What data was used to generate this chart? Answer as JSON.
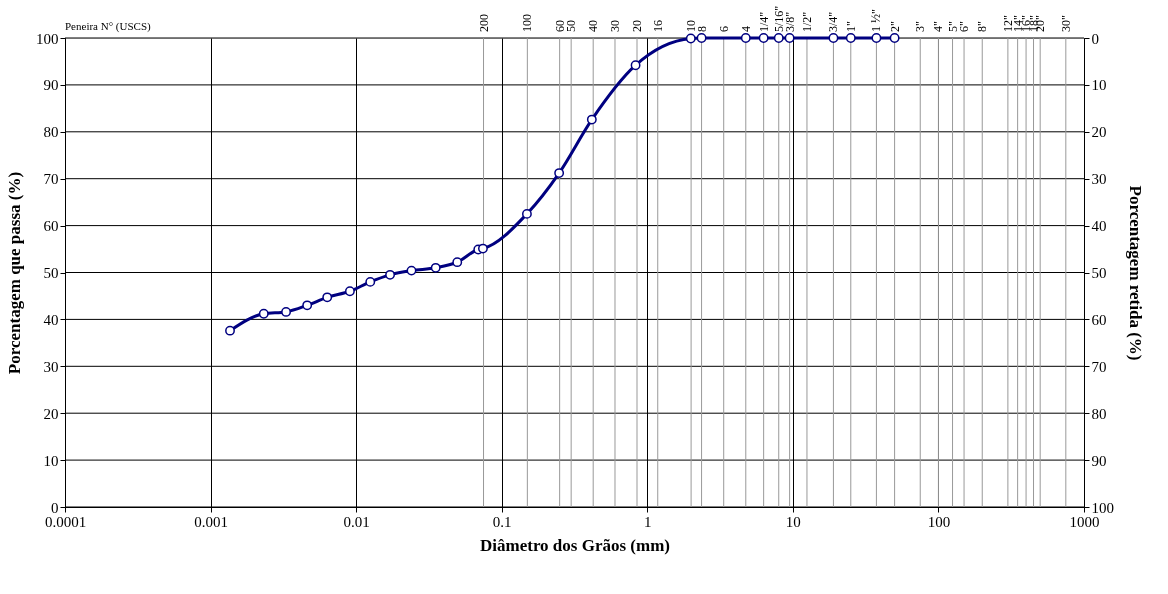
{
  "chart_data": {
    "type": "line",
    "xlabel": "Diâmetro dos Grãos (mm)",
    "ylabel": "Porcentagem que passa     (%)",
    "y2label": "Porcentagem retida  (%)",
    "annotations": [
      "Peneira N°  (USCS)",
      {
        "text": "200",
        "x": 0.075,
        "y": 100
      },
      {
        "text": "100",
        "x": 0.15,
        "y": 100
      },
      {
        "text": "60",
        "x": 0.25,
        "y": 100
      },
      {
        "text": "50",
        "x": 0.3,
        "y": 100
      },
      {
        "text": "40",
        "x": 0.425,
        "y": 100
      },
      {
        "text": "30",
        "x": 0.6,
        "y": 100
      },
      {
        "text": "20",
        "x": 0.85,
        "y": 100
      },
      {
        "text": "16",
        "x": 1.18,
        "y": 100
      },
      {
        "text": "10",
        "x": 2.0,
        "y": 100
      },
      {
        "text": "8",
        "x": 2.36,
        "y": 100
      },
      {
        "text": "6",
        "x": 3.35,
        "y": 100
      },
      {
        "text": "4",
        "x": 4.75,
        "y": 100
      },
      {
        "text": "1/4\"",
        "x": 6.3,
        "y": 100
      },
      {
        "text": "5/16\"",
        "x": 8,
        "y": 100
      },
      {
        "text": "3/8\"",
        "x": 9.5,
        "y": 100
      },
      {
        "text": "1/2\"",
        "x": 12.5,
        "y": 100
      },
      {
        "text": "3/4\"",
        "x": 19,
        "y": 100
      },
      {
        "text": "1\"",
        "x": 25,
        "y": 100
      },
      {
        "text": "1 ½\"",
        "x": 37.5,
        "y": 100
      },
      {
        "text": "2\"",
        "x": 50,
        "y": 100
      },
      {
        "text": "3\"",
        "x": 75,
        "y": 100
      },
      {
        "text": "4\"",
        "x": 100,
        "y": 100
      },
      {
        "text": "5\"",
        "x": 125,
        "y": 100
      },
      {
        "text": "6\"",
        "x": 150,
        "y": 100
      },
      {
        "text": "8\"",
        "x": 200,
        "y": 100
      },
      {
        "text": "12\"",
        "x": 300,
        "y": 100
      },
      {
        "text": "14\"",
        "x": 350,
        "y": 100
      },
      {
        "text": "16\"",
        "x": 400,
        "y": 100
      },
      {
        "text": "18\"",
        "x": 450,
        "y": 100
      },
      {
        "text": "20\"",
        "x": 500,
        "y": 100
      },
      {
        "text": "30\"",
        "x": 750,
        "y": 100
      }
    ],
    "ref_lines": [
      {
        "axis": "x",
        "value": 0.075,
        "color": "#999999"
      },
      {
        "axis": "x",
        "value": 0.15,
        "color": "#999999"
      },
      {
        "axis": "x",
        "value": 0.25,
        "color": "#999999"
      },
      {
        "axis": "x",
        "value": 0.3,
        "color": "#999999"
      },
      {
        "axis": "x",
        "value": 0.425,
        "color": "#999999"
      },
      {
        "axis": "x",
        "value": 0.6,
        "color": "#999999"
      },
      {
        "axis": "x",
        "value": 0.85,
        "color": "#999999"
      },
      {
        "axis": "x",
        "value": 1.18,
        "color": "#999999"
      },
      {
        "axis": "x",
        "value": 2.0,
        "color": "#999999"
      },
      {
        "axis": "x",
        "value": 2.36,
        "color": "#999999"
      },
      {
        "axis": "x",
        "value": 3.35,
        "color": "#999999"
      },
      {
        "axis": "x",
        "value": 4.75,
        "color": "#999999"
      },
      {
        "axis": "x",
        "value": 6.3,
        "color": "#999999"
      },
      {
        "axis": "x",
        "value": 8,
        "color": "#999999"
      },
      {
        "axis": "x",
        "value": 9.5,
        "color": "#999999"
      },
      {
        "axis": "x",
        "value": 12.5,
        "color": "#999999"
      },
      {
        "axis": "x",
        "value": 19,
        "color": "#999999"
      },
      {
        "axis": "x",
        "value": 25,
        "color": "#999999"
      },
      {
        "axis": "x",
        "value": 37.5,
        "color": "#999999"
      },
      {
        "axis": "x",
        "value": 50,
        "color": "#999999"
      },
      {
        "axis": "x",
        "value": 75,
        "color": "#999999"
      },
      {
        "axis": "x",
        "value": 100,
        "color": "#999999"
      },
      {
        "axis": "x",
        "value": 125,
        "color": "#999999"
      },
      {
        "axis": "x",
        "value": 150,
        "color": "#999999"
      },
      {
        "axis": "x",
        "value": 200,
        "color": "#999999"
      },
      {
        "axis": "x",
        "value": 300,
        "color": "#999999"
      },
      {
        "axis": "x",
        "value": 350,
        "color": "#999999"
      },
      {
        "axis": "x",
        "value": 400,
        "color": "#999999"
      },
      {
        "axis": "x",
        "value": 450,
        "color": "#999999"
      },
      {
        "axis": "x",
        "value": 500,
        "color": "#999999"
      },
      {
        "axis": "x",
        "value": 750,
        "color": "#999999"
      }
    ],
    "series": [
      {
        "color": "#000080",
        "x": [
          0.00136,
          0.00232,
          0.0033,
          0.00461,
          0.00633,
          0.00906,
          0.0125,
          0.0171,
          0.024,
          0.0352,
          0.0495,
          0.069,
          0.0743,
          0.149,
          0.248,
          0.416,
          0.831,
          1.99,
          2.36,
          4.75,
          6.3,
          8,
          9.5,
          19,
          25,
          37.5,
          50
        ],
        "values": [
          37.6,
          41.2,
          41.6,
          43.0,
          44.7,
          46.0,
          48.0,
          49.5,
          50.4,
          51.0,
          52.2,
          54.9,
          55.1,
          62.5,
          71.2,
          82.6,
          94.2,
          99.9,
          100,
          100,
          100,
          100,
          100,
          100,
          100,
          100,
          100
        ]
      }
    ],
    "xlim": [
      0.0001,
      1000
    ],
    "xticks": [
      0.0001,
      0.001,
      0.01,
      0.1,
      1,
      10,
      100,
      1000
    ],
    "ylim": [
      0,
      100
    ],
    "yticks": [
      0,
      10,
      20,
      30,
      40,
      50,
      60,
      70,
      80,
      90,
      100
    ],
    "y2lim": [
      100,
      0
    ],
    "y2ticks": [
      0,
      10,
      20,
      30,
      40,
      50,
      60,
      70,
      80,
      90,
      100
    ],
    "log": "x",
    "grid": true,
    "marker": "circle",
    "line_style": "solid"
  }
}
